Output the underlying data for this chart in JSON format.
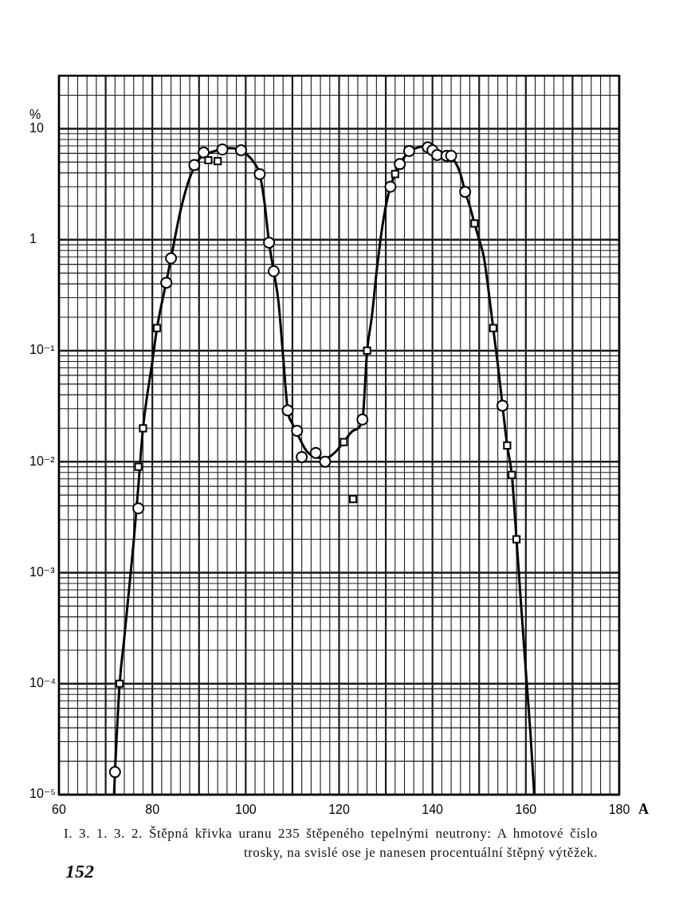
{
  "chart_data": {
    "type": "scatter",
    "xlabel": "A",
    "ylabel": "%",
    "xlim": [
      60,
      180
    ],
    "xticks": [
      60,
      80,
      100,
      120,
      140,
      160,
      180
    ],
    "ylim": [
      1e-05,
      30
    ],
    "yticks": [
      {
        "value": 1e-05,
        "label": "10⁻⁵"
      },
      {
        "value": 0.0001,
        "label": "10⁻⁴"
      },
      {
        "value": 0.001,
        "label": "10⁻³"
      },
      {
        "value": 0.01,
        "label": "10⁻²"
      },
      {
        "value": 0.1,
        "label": "10⁻¹"
      },
      1,
      10
    ],
    "log": "y",
    "grid": true,
    "series": [
      {
        "type": "line",
        "color": "#000000",
        "marker": "none",
        "line_style": "solid",
        "x": [
          71.8,
          72,
          73,
          74,
          75,
          76,
          77,
          78,
          80,
          81,
          83,
          84,
          86,
          88,
          90,
          92,
          94,
          96,
          98,
          100,
          102,
          103,
          104,
          105,
          106,
          107,
          108,
          109,
          110,
          111,
          113,
          115,
          117,
          119,
          121,
          123,
          125,
          126,
          127,
          128,
          129,
          130,
          131,
          132,
          133,
          135,
          137,
          139,
          141,
          143,
          144,
          145,
          146,
          147,
          148,
          149,
          150,
          151,
          152,
          153,
          154,
          155,
          156,
          157,
          158,
          159,
          160,
          161,
          161.8
        ],
        "values": [
          1e-05,
          1.6e-05,
          0.0001,
          0.00026,
          0.0007,
          0.0019,
          0.006,
          0.02,
          0.08,
          0.16,
          0.42,
          0.68,
          1.8,
          3.6,
          5.3,
          6.0,
          6.4,
          6.7,
          6.6,
          6.0,
          4.8,
          3.9,
          2.2,
          0.94,
          0.52,
          0.28,
          0.09,
          0.029,
          0.022,
          0.018,
          0.0125,
          0.011,
          0.0107,
          0.012,
          0.015,
          0.019,
          0.024,
          0.1,
          0.2,
          0.5,
          1.1,
          2.0,
          3.0,
          3.9,
          4.8,
          6.2,
          6.8,
          7.0,
          6.4,
          5.8,
          5.5,
          4.9,
          3.9,
          2.7,
          2.0,
          1.4,
          1.0,
          0.7,
          0.35,
          0.16,
          0.075,
          0.032,
          0.014,
          0.0076,
          0.002,
          0.0005,
          0.00013,
          3.5e-05,
          1e-05
        ]
      },
      {
        "type": "scatter",
        "color": "#000000",
        "marker": "circle",
        "x": [
          72,
          77,
          83,
          84,
          89,
          91,
          95,
          99,
          103,
          105,
          106,
          109,
          111,
          112,
          115,
          117,
          125,
          131,
          133,
          135,
          139,
          140,
          141,
          143,
          144,
          147,
          155
        ],
        "values": [
          1.6e-05,
          0.0038,
          0.41,
          0.68,
          4.7,
          6.1,
          6.5,
          6.4,
          3.9,
          0.94,
          0.52,
          0.029,
          0.019,
          0.011,
          0.012,
          0.01,
          0.024,
          3.0,
          4.8,
          6.3,
          6.8,
          6.4,
          5.8,
          5.7,
          5.7,
          2.7,
          0.032
        ]
      },
      {
        "type": "scatter",
        "color": "#000000",
        "marker": "square",
        "x": [
          73,
          77,
          78,
          81,
          92,
          94,
          121,
          123,
          126,
          132,
          149,
          153,
          156,
          157,
          158
        ],
        "values": [
          0.0001,
          0.009,
          0.02,
          0.16,
          5.2,
          5.1,
          0.015,
          0.0046,
          0.1,
          3.9,
          1.4,
          0.16,
          0.014,
          0.0076,
          0.002
        ]
      }
    ],
    "annotations": [
      "I. 3. 1. 3. 2. Štěpná křivka uranu 235 štěpeného tepelnými neutrony: A hmotové číslo trosky, na svislé ose je nanesen procentuální štěpný výtěžek.",
      "152"
    ]
  }
}
